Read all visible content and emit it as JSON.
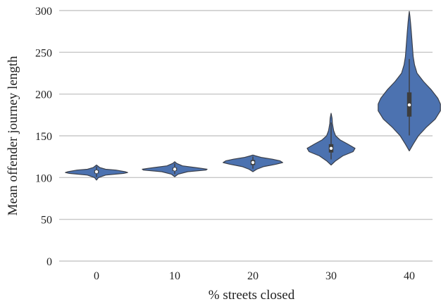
{
  "chart_data": {
    "type": "violin",
    "xlabel": "% streets closed",
    "ylabel": "Mean offender journey length",
    "ylim": [
      0,
      300
    ],
    "yticks": [
      0,
      50,
      100,
      150,
      200,
      250,
      300
    ],
    "grid": true,
    "categories": [
      "0",
      "10",
      "20",
      "30",
      "40"
    ],
    "violins": [
      {
        "category": "0",
        "min": 97,
        "q1": 105,
        "median": 107,
        "q3": 109,
        "max": 115,
        "profile": [
          [
            97,
            0
          ],
          [
            100,
            3
          ],
          [
            103,
            14
          ],
          [
            105,
            42
          ],
          [
            106,
            48
          ],
          [
            107,
            44
          ],
          [
            109,
            30
          ],
          [
            110,
            14
          ],
          [
            112,
            5
          ],
          [
            115,
            0
          ]
        ]
      },
      {
        "category": "10",
        "min": 101,
        "q1": 108,
        "median": 110,
        "q3": 112,
        "max": 119,
        "profile": [
          [
            101,
            0
          ],
          [
            104,
            5
          ],
          [
            107,
            20
          ],
          [
            109,
            48
          ],
          [
            110,
            50
          ],
          [
            111,
            42
          ],
          [
            112,
            32
          ],
          [
            114,
            12
          ],
          [
            117,
            3
          ],
          [
            119,
            0
          ]
        ]
      },
      {
        "category": "20",
        "min": 107,
        "q1": 115,
        "median": 118,
        "q3": 121,
        "max": 127,
        "profile": [
          [
            107,
            0
          ],
          [
            110,
            6
          ],
          [
            113,
            16
          ],
          [
            116,
            36
          ],
          [
            118,
            46
          ],
          [
            120,
            42
          ],
          [
            122,
            30
          ],
          [
            124,
            14
          ],
          [
            126,
            4
          ],
          [
            127,
            0
          ]
        ]
      },
      {
        "category": "30",
        "min": 115,
        "q1": 130,
        "median": 135,
        "q3": 140,
        "max": 177,
        "profile": [
          [
            115,
            0
          ],
          [
            120,
            7
          ],
          [
            126,
            18
          ],
          [
            131,
            34
          ],
          [
            135,
            37
          ],
          [
            140,
            26
          ],
          [
            145,
            14
          ],
          [
            150,
            7
          ],
          [
            156,
            4
          ],
          [
            160,
            3
          ],
          [
            165,
            2
          ],
          [
            171,
            1.5
          ],
          [
            177,
            0
          ]
        ]
      },
      {
        "category": "40",
        "min": 132,
        "q1": 173,
        "median": 187,
        "q3": 202,
        "max": 299,
        "profile": [
          [
            132,
            0
          ],
          [
            140,
            6
          ],
          [
            150,
            14
          ],
          [
            160,
            26
          ],
          [
            170,
            40
          ],
          [
            180,
            48
          ],
          [
            188,
            48
          ],
          [
            195,
            44
          ],
          [
            205,
            34
          ],
          [
            215,
            22
          ],
          [
            225,
            12
          ],
          [
            235,
            8
          ],
          [
            245,
            6
          ],
          [
            255,
            5
          ],
          [
            265,
            4
          ],
          [
            275,
            3
          ],
          [
            285,
            2
          ],
          [
            293,
            1
          ],
          [
            299,
            0
          ]
        ]
      }
    ]
  }
}
